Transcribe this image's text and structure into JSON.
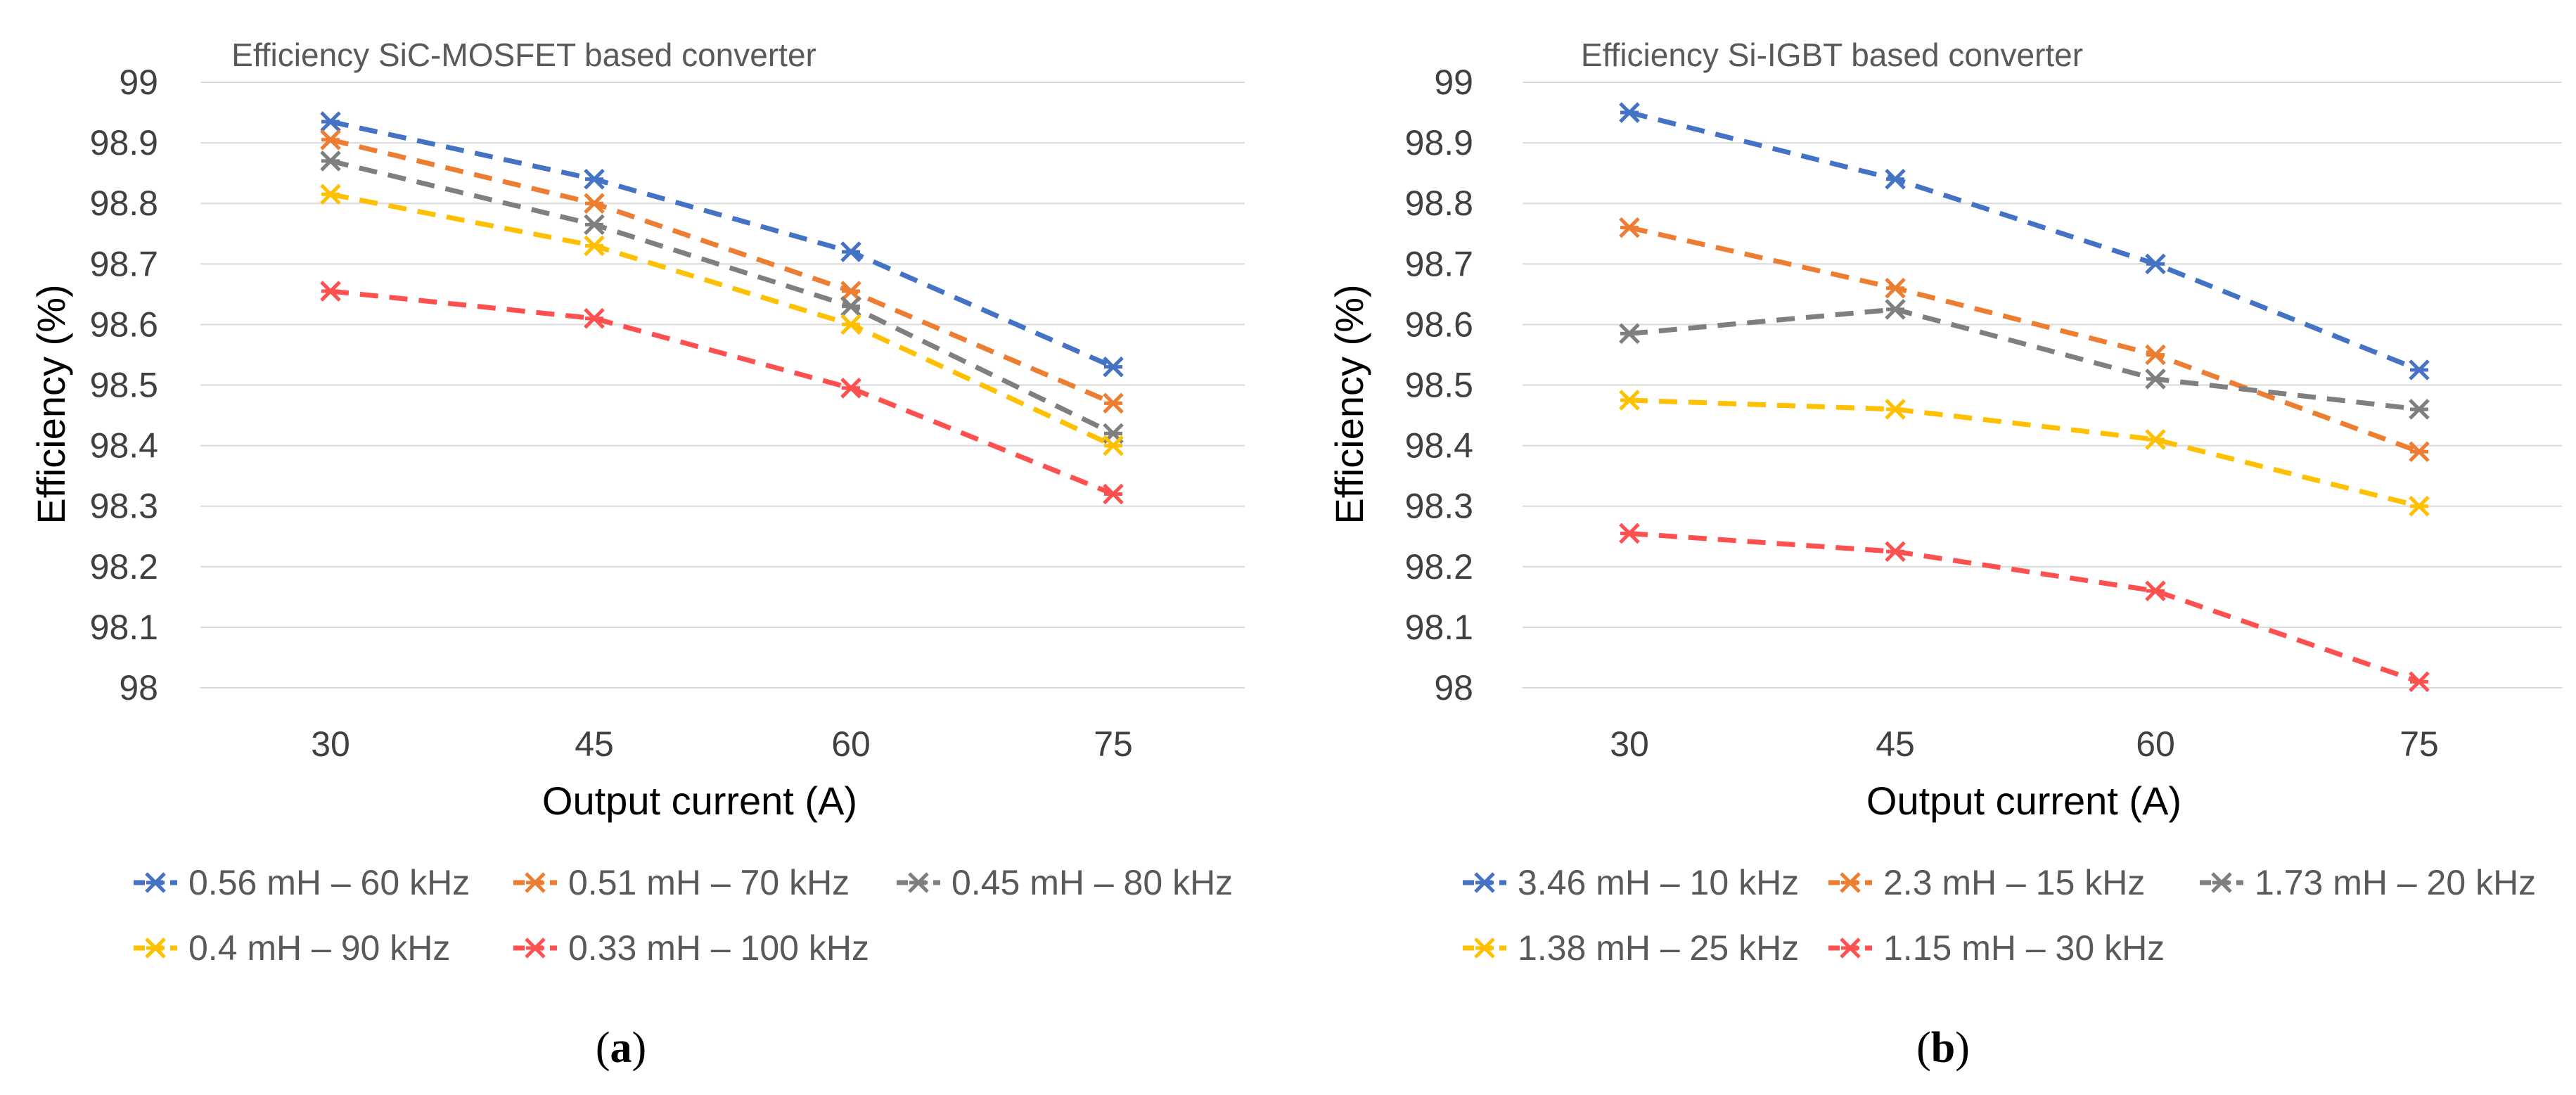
{
  "chart_data": [
    {
      "type": "line",
      "title": "Efficiency SiC-MOSFET based converter",
      "xlabel": "Output current (A)",
      "ylabel": "Efficiency (%)",
      "categories": [
        "30",
        "45",
        "60",
        "75"
      ],
      "y_ticks": [
        "99",
        "98.9",
        "98.8",
        "98.7",
        "98.6",
        "98.5",
        "98.4",
        "98.3",
        "98.2",
        "98.1",
        "98"
      ],
      "ylim": [
        98,
        99
      ],
      "grid": true,
      "legend_position": "bottom",
      "caption": "(a)",
      "caption_letter": "a",
      "series": [
        {
          "name": "0.56 mH – 60 kHz",
          "color": "#4472C4",
          "values": [
            98.935,
            98.84,
            98.72,
            98.53
          ]
        },
        {
          "name": "0.51 mH – 70 kHz",
          "color": "#ED7D31",
          "values": [
            98.905,
            98.8,
            98.655,
            98.47
          ]
        },
        {
          "name": "0.45 mH – 80 kHz",
          "color": "#7F7F7F",
          "values": [
            98.87,
            98.765,
            98.63,
            98.42
          ]
        },
        {
          "name": "0.4 mH – 90 kHz",
          "color": "#FFC000",
          "values": [
            98.815,
            98.73,
            98.6,
            98.4
          ]
        },
        {
          "name": "0.33 mH – 100 kHz",
          "color": "#FF5050",
          "values": [
            98.655,
            98.61,
            98.495,
            98.32
          ]
        }
      ]
    },
    {
      "type": "line",
      "title": "Efficiency Si-IGBT based converter",
      "xlabel": "Output current (A)",
      "ylabel": "Efficiency (%)",
      "categories": [
        "30",
        "45",
        "60",
        "75"
      ],
      "y_ticks": [
        "99",
        "98.9",
        "98.8",
        "98.7",
        "98.6",
        "98.5",
        "98.4",
        "98.3",
        "98.2",
        "98.1",
        "98"
      ],
      "ylim": [
        98,
        99
      ],
      "grid": true,
      "legend_position": "bottom",
      "caption": "(b)",
      "caption_letter": "b",
      "series": [
        {
          "name": "3.46 mH – 10 kHz",
          "color": "#4472C4",
          "values": [
            98.95,
            98.84,
            98.7,
            98.525
          ]
        },
        {
          "name": "2.3 mH – 15 kHz",
          "color": "#ED7D31",
          "values": [
            98.76,
            98.66,
            98.55,
            98.39
          ]
        },
        {
          "name": "1.73 mH – 20 kHz",
          "color": "#7F7F7F",
          "values": [
            98.585,
            98.625,
            98.51,
            98.46
          ]
        },
        {
          "name": "1.38 mH – 25 kHz",
          "color": "#FFC000",
          "values": [
            98.475,
            98.46,
            98.41,
            98.3
          ]
        },
        {
          "name": "1.15 mH – 30 kHz",
          "color": "#FF5050",
          "values": [
            98.255,
            98.225,
            98.16,
            98.01
          ]
        }
      ]
    }
  ]
}
